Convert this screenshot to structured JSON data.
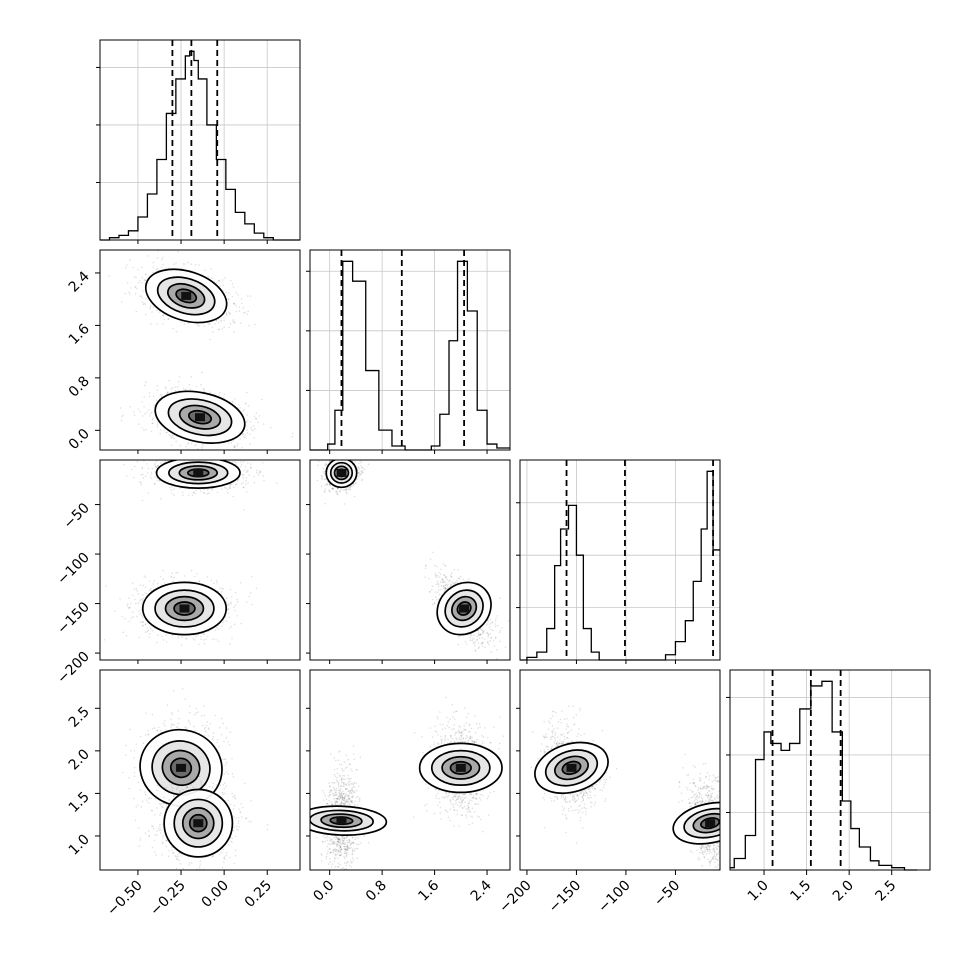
{
  "chart_data": {
    "type": "corner",
    "grid": true,
    "parameters": [
      {
        "id": "p0",
        "range": [
          -0.72,
          0.44
        ],
        "ticks": [
          -0.5,
          -0.25,
          0.0,
          0.25
        ],
        "tick_labels": [
          "−0.50",
          "−0.25",
          "0.00",
          "0.25"
        ],
        "quantiles": [
          -0.3,
          -0.19,
          -0.04
        ]
      },
      {
        "id": "p1",
        "range": [
          -0.3,
          2.75
        ],
        "ticks": [
          0.0,
          0.8,
          1.6,
          2.4
        ],
        "tick_labels": [
          "0.0",
          "0.8",
          "1.6",
          "2.4"
        ],
        "quantiles": [
          0.18,
          1.1,
          2.05
        ]
      },
      {
        "id": "p2",
        "range": [
          -207,
          -5
        ],
        "ticks": [
          -200,
          -150,
          -100,
          -50
        ],
        "tick_labels": [
          "−200",
          "−150",
          "−100",
          "−50"
        ],
        "quantiles": [
          -160,
          -101,
          -12
        ]
      },
      {
        "id": "p3",
        "range": [
          0.6,
          2.95
        ],
        "ticks": [
          1.0,
          1.5,
          2.0,
          2.5
        ],
        "tick_labels": [
          "1.0",
          "1.5",
          "2.0",
          "2.5"
        ],
        "quantiles": [
          1.1,
          1.55,
          1.9
        ]
      }
    ],
    "histograms": [
      {
        "param": "p0",
        "bins": [
          -0.72,
          -0.665,
          -0.61,
          -0.555,
          -0.5,
          -0.445,
          -0.39,
          -0.335,
          -0.28,
          -0.225,
          -0.2,
          -0.175,
          -0.15,
          -0.1,
          -0.045,
          0.01,
          0.065,
          0.12,
          0.175,
          0.23,
          0.285,
          0.34,
          0.395,
          0.44
        ],
        "counts": [
          0,
          1,
          2,
          4,
          10,
          20,
          35,
          55,
          70,
          80,
          82,
          78,
          70,
          50,
          35,
          22,
          12,
          7,
          3,
          1,
          0,
          0,
          0
        ]
      },
      {
        "param": "p1",
        "bins": [
          -0.3,
          -0.03,
          0.08,
          0.2,
          0.35,
          0.55,
          0.75,
          0.95,
          1.15,
          1.35,
          1.55,
          1.68,
          1.82,
          1.95,
          2.1,
          2.25,
          2.4,
          2.55,
          2.75
        ],
        "counts": [
          0,
          3,
          20,
          95,
          85,
          40,
          10,
          2,
          0,
          0,
          2,
          18,
          55,
          95,
          70,
          20,
          3,
          1
        ]
      },
      {
        "param": "p2",
        "bins": [
          -207,
          -200,
          -190,
          -180,
          -172,
          -166,
          -158,
          -150,
          -143,
          -135,
          -127,
          -120,
          -60,
          -50,
          -40,
          -32,
          -24,
          -18,
          -12,
          -5
        ],
        "counts": [
          0,
          1,
          3,
          12,
          36,
          50,
          59,
          40,
          12,
          3,
          0,
          0,
          2,
          7,
          15,
          30,
          50,
          72,
          42
        ]
      },
      {
        "param": "p3",
        "bins": [
          0.6,
          0.65,
          0.78,
          0.9,
          1.0,
          1.08,
          1.2,
          1.3,
          1.42,
          1.55,
          1.68,
          1.8,
          1.92,
          2.02,
          2.12,
          2.25,
          2.35,
          2.5,
          2.65,
          2.8
        ],
        "counts": [
          1,
          5,
          15,
          48,
          60,
          55,
          52,
          55,
          70,
          80,
          82,
          60,
          30,
          18,
          10,
          4,
          2,
          1,
          0
        ]
      }
    ],
    "joint_modes": [
      {
        "pair": [
          "p0",
          "p1"
        ],
        "modes": [
          {
            "cx": -0.22,
            "cy": 2.05,
            "sx": 0.11,
            "sy": 0.17,
            "rho": -0.4
          },
          {
            "cx": -0.14,
            "cy": 0.2,
            "sx": 0.12,
            "sy": 0.17,
            "rho": -0.3
          }
        ]
      },
      {
        "pair": [
          "p0",
          "p2"
        ],
        "modes": [
          {
            "cx": -0.15,
            "cy": -18,
            "sx": 0.11,
            "sy": 7,
            "rho": 0
          },
          {
            "cx": -0.23,
            "cy": -155,
            "sx": 0.11,
            "sy": 12,
            "rho": 0
          }
        ]
      },
      {
        "pair": [
          "p1",
          "p2"
        ],
        "modes": [
          {
            "cx": 0.18,
            "cy": -18,
            "sx": 0.1,
            "sy": 7,
            "rho": 0
          },
          {
            "cx": 2.05,
            "cy": -155,
            "sx": 0.17,
            "sy": 13,
            "rho": -0.65
          }
        ]
      },
      {
        "pair": [
          "p0",
          "p3"
        ],
        "modes": [
          {
            "cx": -0.25,
            "cy": 1.8,
            "sx": 0.1,
            "sy": 0.22,
            "rho": 0.05
          },
          {
            "cx": -0.15,
            "cy": 1.15,
            "sx": 0.09,
            "sy": 0.18,
            "rho": 0
          }
        ]
      },
      {
        "pair": [
          "p1",
          "p3"
        ],
        "modes": [
          {
            "cx": 0.18,
            "cy": 1.18,
            "sx": 0.1,
            "sy": 0.24,
            "rho": 0.1
          },
          {
            "cx": 2.0,
            "cy": 1.8,
            "sx": 0.17,
            "sy": 0.22,
            "rho": 0
          }
        ]
      },
      {
        "pair": [
          "p2",
          "p3"
        ],
        "modes": [
          {
            "cx": -155,
            "cy": 1.8,
            "sx": 11,
            "sy": 0.2,
            "rho": -0.3
          },
          {
            "cx": -15,
            "cy": 1.15,
            "sx": 9,
            "sy": 0.2,
            "rho": -0.3
          }
        ]
      }
    ]
  }
}
